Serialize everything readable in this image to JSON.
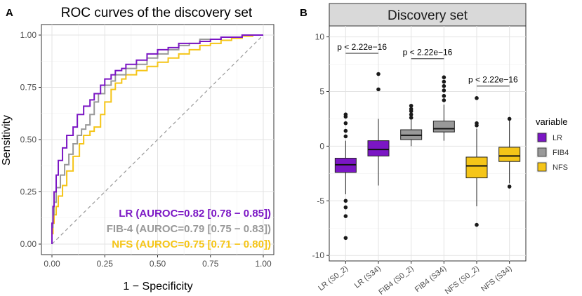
{
  "chart_data": [
    {
      "panel_label": "A",
      "type": "line",
      "title": "ROC curves of the discovery set",
      "xlabel": "1 − Specificity",
      "ylabel": "Sensitivity",
      "xlim": [
        0,
        1
      ],
      "ylim": [
        0,
        1
      ],
      "x_ticks": [
        "0.00",
        "0.25",
        "0.50",
        "0.75",
        "1.00"
      ],
      "y_ticks": [
        "0.00",
        "0.25",
        "0.50",
        "0.75",
        "1.00"
      ],
      "grid": true,
      "reference_line": "diagonal",
      "series": [
        {
          "name": "NFS",
          "label": "NFS (AUROC=0.75 [0.71 − 0.80])",
          "color": "#f5c518",
          "x": [
            0,
            0.005,
            0.01,
            0.02,
            0.03,
            0.05,
            0.07,
            0.1,
            0.13,
            0.15,
            0.18,
            0.2,
            0.23,
            0.25,
            0.28,
            0.3,
            0.33,
            0.35,
            0.4,
            0.45,
            0.5,
            0.55,
            0.6,
            0.65,
            0.7,
            0.75,
            0.8,
            0.85,
            0.9,
            0.95,
            1.0
          ],
          "y": [
            0,
            0.05,
            0.1,
            0.14,
            0.18,
            0.23,
            0.28,
            0.35,
            0.42,
            0.48,
            0.52,
            0.54,
            0.56,
            0.62,
            0.68,
            0.74,
            0.77,
            0.79,
            0.81,
            0.83,
            0.85,
            0.87,
            0.89,
            0.91,
            0.93,
            0.95,
            0.96,
            0.975,
            0.985,
            0.995,
            1.0
          ]
        },
        {
          "name": "FIB-4",
          "label": "FIB-4 (AUROC=0.79 [0.75 − 0.83])",
          "color": "#999999",
          "x": [
            0,
            0.005,
            0.01,
            0.02,
            0.04,
            0.06,
            0.08,
            0.1,
            0.12,
            0.14,
            0.16,
            0.18,
            0.2,
            0.22,
            0.25,
            0.28,
            0.3,
            0.35,
            0.4,
            0.45,
            0.5,
            0.55,
            0.6,
            0.65,
            0.7,
            0.8,
            0.9,
            0.95,
            1.0
          ],
          "y": [
            0,
            0.08,
            0.14,
            0.2,
            0.27,
            0.33,
            0.38,
            0.43,
            0.48,
            0.52,
            0.55,
            0.57,
            0.62,
            0.68,
            0.72,
            0.76,
            0.78,
            0.81,
            0.84,
            0.86,
            0.89,
            0.91,
            0.93,
            0.95,
            0.96,
            0.98,
            0.99,
            1.0,
            1.0
          ]
        },
        {
          "name": "LR",
          "label": "LR (AUROC=0.82 [0.78 − 0.85])",
          "color": "#7b16c4",
          "x": [
            0,
            0.005,
            0.01,
            0.02,
            0.03,
            0.05,
            0.07,
            0.1,
            0.12,
            0.15,
            0.18,
            0.2,
            0.23,
            0.25,
            0.28,
            0.3,
            0.33,
            0.35,
            0.4,
            0.45,
            0.5,
            0.55,
            0.6,
            0.7,
            0.75,
            0.8,
            0.9,
            0.95,
            1.0
          ],
          "y": [
            0,
            0.1,
            0.18,
            0.25,
            0.33,
            0.4,
            0.46,
            0.52,
            0.56,
            0.62,
            0.66,
            0.69,
            0.72,
            0.76,
            0.79,
            0.81,
            0.83,
            0.84,
            0.86,
            0.88,
            0.91,
            0.93,
            0.94,
            0.96,
            0.97,
            0.98,
            0.99,
            1.0,
            1.0
          ]
        }
      ]
    },
    {
      "panel_label": "B",
      "type": "box",
      "title": "Discovery set",
      "xlabel": "",
      "ylabel": "",
      "ylim": [
        -10.5,
        11
      ],
      "y_ticks": [
        "-10",
        "-5",
        "0",
        "5",
        "10"
      ],
      "grid": true,
      "categories": [
        "LR (S0_2)",
        "LR (S34)",
        "FIB4 (S0_2)",
        "FIB4 (S34)",
        "NFS (S0_2)",
        "NFS (S34)"
      ],
      "boxes": [
        {
          "category": "LR (S0_2)",
          "variable": "LR",
          "q1": -2.4,
          "median": -1.7,
          "q3": -1.1,
          "whisker_low": -4.4,
          "whisker_high": 0.5,
          "outliers": [
            -5.0,
            -5.6,
            -6.4,
            -8.4,
            0.9,
            1.4,
            2.1,
            2.7,
            2.9
          ]
        },
        {
          "category": "LR (S34)",
          "variable": "LR",
          "q1": -0.9,
          "median": -0.3,
          "q3": 0.5,
          "whisker_low": -3.6,
          "whisker_high": 2.5,
          "outliers": [
            5.2,
            6.6
          ]
        },
        {
          "category": "FIB4 (S0_2)",
          "variable": "FIB4",
          "q1": 0.6,
          "median": 1.0,
          "q3": 1.5,
          "whisker_low": 0.0,
          "whisker_high": 2.4,
          "outliers": [
            2.6,
            2.9,
            3.2,
            3.4,
            3.7
          ]
        },
        {
          "category": "FIB4 (S34)",
          "variable": "FIB4",
          "q1": 1.3,
          "median": 1.6,
          "q3": 2.3,
          "whisker_low": 0.5,
          "whisker_high": 3.8,
          "outliers": [
            4.2,
            4.6,
            5.1,
            5.5,
            5.9,
            6.3
          ]
        },
        {
          "category": "NFS (S0_2)",
          "variable": "NFS",
          "q1": -2.9,
          "median": -1.8,
          "q3": -1.0,
          "whisker_low": -5.5,
          "whisker_high": 1.6,
          "outliers": [
            -7.2,
            1.9,
            2.1,
            4.4
          ]
        },
        {
          "category": "NFS (S34)",
          "variable": "NFS",
          "q1": -1.4,
          "median": -0.9,
          "q3": -0.1,
          "whisker_low": -3.4,
          "whisker_high": 2.4,
          "outliers": [
            -3.7,
            2.5
          ]
        }
      ],
      "annotations": [
        {
          "text": "p < 2.22e−16",
          "from": 0,
          "to": 1,
          "y": 8.5
        },
        {
          "text": "p < 2.22e−16",
          "from": 2,
          "to": 3,
          "y": 8.0
        },
        {
          "text": "p < 2.22e−16",
          "from": 4,
          "to": 5,
          "y": 5.5
        }
      ],
      "legend": {
        "title": "variable",
        "position": "right",
        "items": [
          {
            "label": "LR",
            "color": "#7b16c4"
          },
          {
            "label": "FIB4",
            "color": "#999999"
          },
          {
            "label": "NFS",
            "color": "#f5c518"
          }
        ]
      }
    }
  ]
}
